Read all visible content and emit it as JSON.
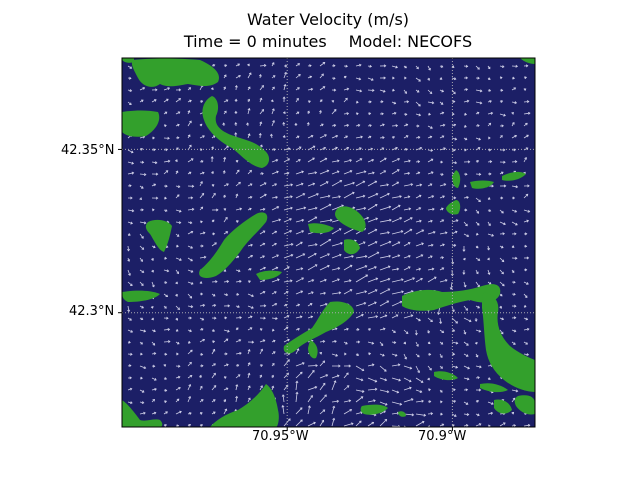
{
  "title": {
    "line1": "Water Velocity (m/s)",
    "time": "Time = 0 minutes",
    "model": "Model: NECOFS"
  },
  "axes": {
    "lat_ticks": [
      {
        "value": 42.35,
        "label": "42.35°N"
      },
      {
        "value": 42.3,
        "label": "42.3°N"
      }
    ],
    "lon_ticks": [
      {
        "value": -70.95,
        "label": "70.95°W"
      },
      {
        "value": -70.9,
        "label": "70.9°W"
      }
    ],
    "lon_range": [
      -71.0,
      -70.875
    ],
    "lat_range": [
      42.265,
      42.378
    ],
    "gridlines": true,
    "gridline_style": "dotted"
  },
  "colors": {
    "water": "#1c1f66",
    "land": "#33a02c",
    "arrows": "#d0d0e8",
    "gridlines": "#a8a8b0",
    "frame": "#000000"
  },
  "vector_field": {
    "quantity": "water velocity",
    "units": "m/s",
    "arrow_color": "light gray"
  }
}
